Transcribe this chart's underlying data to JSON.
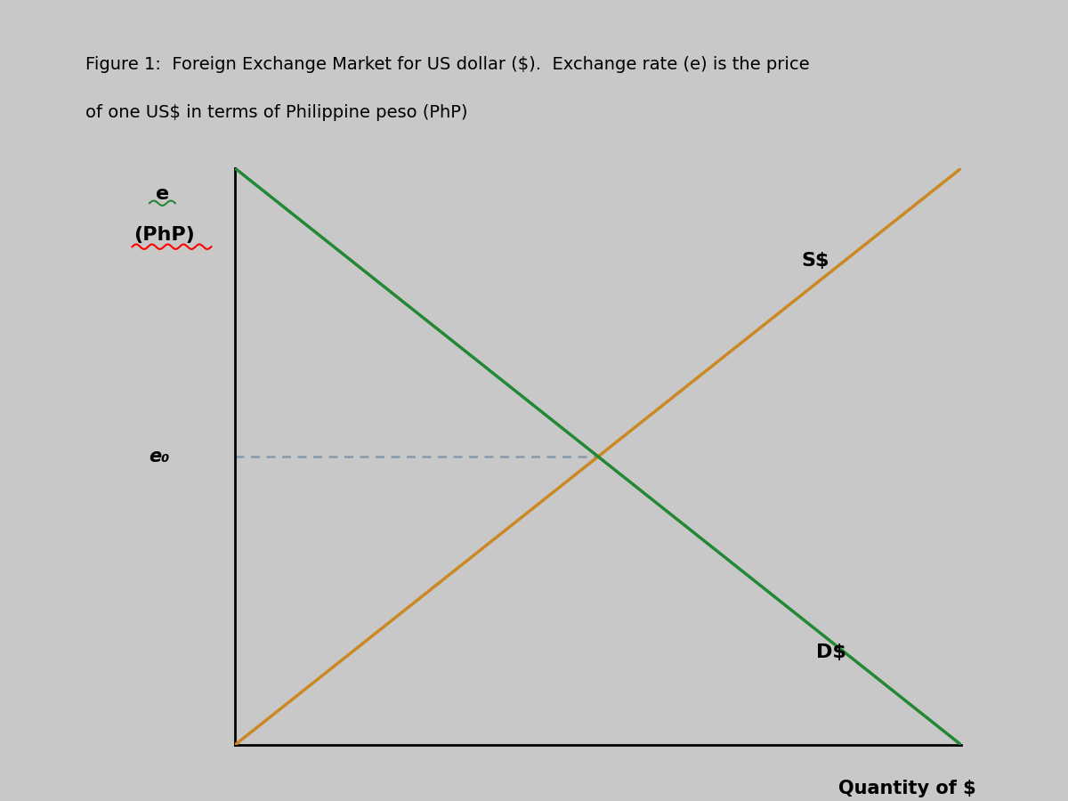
{
  "title_line1": "Figure 1:  Foreign Exchange Market for US dollar ($).  Exchange rate (e) is the price",
  "title_line2": "of one US$ in terms of Philippine peso (PhP)",
  "background_color": "#c8c8c8",
  "plot_bg_color": "#c8c8c8",
  "supply_color": "#cc8822",
  "demand_color": "#228833",
  "dashed_color": "#8899aa",
  "ylabel_e": "e",
  "ylabel_php": "(PhP)",
  "xlabel": "Quantity of $",
  "eq_label": "e₀",
  "line_width": 2.5,
  "title_fontsize": 14,
  "label_fontsize": 16
}
